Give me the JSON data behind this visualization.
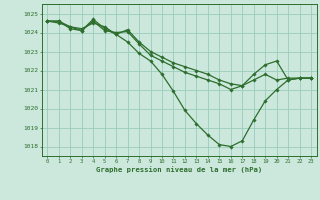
{
  "title": "Graphe pression niveau de la mer (hPa)",
  "bg_color": "#cce8dd",
  "plot_bg_color": "#cce8dd",
  "grid_color": "#99ccbb",
  "line_color": "#2d6e2d",
  "text_color": "#2d6e2d",
  "xlim": [
    -0.5,
    23.5
  ],
  "ylim": [
    1017.5,
    1025.5
  ],
  "yticks": [
    1018,
    1019,
    1020,
    1021,
    1022,
    1023,
    1024,
    1025
  ],
  "xticks": [
    0,
    1,
    2,
    3,
    4,
    5,
    6,
    7,
    8,
    9,
    10,
    11,
    12,
    13,
    14,
    15,
    16,
    17,
    18,
    19,
    20,
    21,
    22,
    23
  ],
  "lines": [
    [
      1024.6,
      1024.5,
      1024.3,
      1024.2,
      1024.5,
      1024.3,
      1023.9,
      1023.5,
      1022.9,
      1022.5,
      1021.8,
      1020.9,
      1019.9,
      1019.2,
      1018.6,
      1018.1,
      1018.0,
      1018.3,
      1019.4,
      1020.4,
      1021.0,
      1021.5,
      1021.6,
      1021.6
    ],
    [
      1024.6,
      1024.6,
      1024.2,
      1024.1,
      1024.7,
      1024.2,
      1023.9,
      1024.15,
      1023.5,
      1023.0,
      1022.7,
      1022.4,
      1022.2,
      1022.0,
      1021.8,
      1021.5,
      1021.3,
      1021.2,
      1021.5,
      1021.8,
      1021.5,
      1021.6,
      1021.6,
      1021.6
    ],
    [
      1024.6,
      1024.6,
      1024.3,
      1024.1,
      1024.6,
      1024.1,
      1024.0,
      1024.05,
      1023.4,
      1022.8,
      1022.5,
      1022.2,
      1021.9,
      1021.7,
      1021.5,
      1021.3,
      1021.0,
      1021.2,
      1021.8,
      1022.3,
      1022.5,
      1021.5,
      1021.6,
      1021.6
    ]
  ],
  "marker_style": "D",
  "marker_size": 1.8,
  "line_width": 0.9
}
